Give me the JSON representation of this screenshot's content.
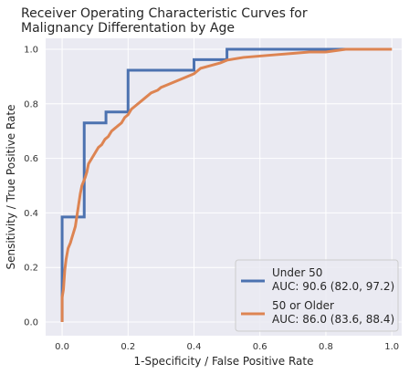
{
  "chart_data": {
    "type": "line",
    "title": "Receiver Operating Characteristic Curves for\nMalignancy Differentation by Age",
    "xlabel": "1-Specificity / False Positive Rate",
    "ylabel": "Sensitivity / True Positive Rate",
    "xlim": [
      -0.05,
      1.03
    ],
    "ylim": [
      -0.05,
      1.04
    ],
    "xticks": [
      0.0,
      0.2,
      0.4,
      0.6,
      0.8,
      1.0
    ],
    "yticks": [
      0.0,
      0.2,
      0.4,
      0.6,
      0.8,
      1.0
    ],
    "xtick_labels": [
      "0.0",
      "0.2",
      "0.4",
      "0.6",
      "0.8",
      "1.0"
    ],
    "ytick_labels": [
      "0.0",
      "0.2",
      "0.4",
      "0.6",
      "0.8",
      "1.0"
    ],
    "grid": true,
    "legend_position": "lower-right",
    "series": [
      {
        "name": "Under 50\nAUC: 90.6 (82.0, 97.2)",
        "color": "#4c72b0",
        "step": true,
        "x": [
          0.0,
          0.0,
          0.0,
          0.0,
          0.067,
          0.067,
          0.133,
          0.133,
          0.2,
          0.2,
          0.4,
          0.4,
          0.5,
          0.5,
          0.8,
          1.0
        ],
        "y": [
          0.0,
          0.23,
          0.23,
          0.385,
          0.385,
          0.73,
          0.73,
          0.77,
          0.77,
          0.923,
          0.923,
          0.962,
          0.962,
          1.0,
          1.0,
          1.0
        ]
      },
      {
        "name": "50 or Older\nAUC: 86.0 (83.6, 88.4)",
        "color": "#dd8452",
        "step": false,
        "x": [
          0.0,
          0.0,
          0.004,
          0.008,
          0.012,
          0.018,
          0.025,
          0.03,
          0.04,
          0.045,
          0.05,
          0.055,
          0.06,
          0.07,
          0.075,
          0.08,
          0.09,
          0.1,
          0.11,
          0.12,
          0.13,
          0.14,
          0.15,
          0.16,
          0.17,
          0.18,
          0.19,
          0.2,
          0.21,
          0.22,
          0.23,
          0.24,
          0.25,
          0.27,
          0.29,
          0.3,
          0.32,
          0.34,
          0.36,
          0.38,
          0.4,
          0.42,
          0.45,
          0.48,
          0.5,
          0.55,
          0.6,
          0.65,
          0.7,
          0.75,
          0.8,
          0.83,
          0.86,
          0.9,
          0.95,
          1.0
        ],
        "y": [
          0.0,
          0.09,
          0.12,
          0.19,
          0.23,
          0.27,
          0.29,
          0.31,
          0.35,
          0.39,
          0.43,
          0.47,
          0.5,
          0.53,
          0.55,
          0.58,
          0.6,
          0.62,
          0.64,
          0.65,
          0.67,
          0.68,
          0.7,
          0.71,
          0.72,
          0.73,
          0.75,
          0.76,
          0.78,
          0.79,
          0.8,
          0.81,
          0.82,
          0.84,
          0.85,
          0.86,
          0.87,
          0.88,
          0.89,
          0.9,
          0.91,
          0.93,
          0.94,
          0.95,
          0.96,
          0.97,
          0.975,
          0.98,
          0.985,
          0.99,
          0.99,
          0.995,
          1.0,
          1.0,
          1.0,
          1.0
        ]
      }
    ]
  }
}
